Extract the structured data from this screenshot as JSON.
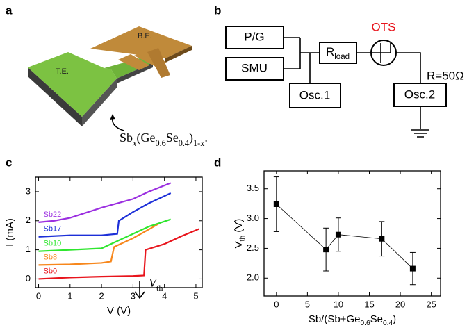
{
  "panel_a": {
    "label": "a",
    "top_electrode": "T.E.",
    "bottom_electrode": "B.E.",
    "material": [
      {
        "text": "Sb"
      },
      {
        "text": "x",
        "sub": true,
        "italic": true
      },
      {
        "text": "(Ge"
      },
      {
        "text": "0.6",
        "sub": true
      },
      {
        "text": "Se"
      },
      {
        "text": "0.4",
        "sub": true
      },
      {
        "text": ")"
      },
      {
        "text": "1-x",
        "sub": true
      },
      {
        "text": "."
      }
    ]
  },
  "panel_b": {
    "label": "b",
    "pulse_generator": "P/G",
    "smu": "SMU",
    "osc1": "Osc.1",
    "osc2": "Osc.2",
    "load": [
      {
        "text": "R"
      },
      {
        "text": "load",
        "sub": true
      }
    ],
    "device": "OTS",
    "resistance": "R=50Ω"
  },
  "chart_data": [
    {
      "panel": "c",
      "type": "line",
      "x_label": "V (V)",
      "y_label": "I (mA)",
      "xlim": [
        -0.1,
        5.2
      ],
      "ylim": [
        -0.3,
        3.5
      ],
      "xticks": [
        0,
        1,
        2,
        3,
        4,
        5
      ],
      "yticks": [
        0,
        1,
        2,
        3
      ],
      "annotation": [
        {
          "text": "V",
          "italic": true
        },
        {
          "text": "th",
          "sub": true
        }
      ],
      "series": [
        {
          "name": "Sb0",
          "color": "#e8141c",
          "x": [
            0,
            1,
            2,
            3,
            3.35,
            3.4,
            4,
            4.5,
            5.1
          ],
          "values": [
            0,
            0.05,
            0.08,
            0.1,
            0.12,
            1.0,
            1.2,
            1.45,
            1.72
          ]
        },
        {
          "name": "Sb8",
          "color": "#f7871c",
          "x": [
            0,
            1,
            2,
            2.3,
            2.4,
            3,
            3.5,
            3.9
          ],
          "values": [
            0.48,
            0.5,
            0.55,
            0.6,
            1.1,
            1.4,
            1.7,
            1.95
          ]
        },
        {
          "name": "Sb10",
          "color": "#2ee62e",
          "x": [
            0,
            1,
            2,
            2.5,
            3,
            3.5,
            4.2
          ],
          "values": [
            0.95,
            1,
            1.05,
            1.3,
            1.55,
            1.8,
            2.05
          ]
        },
        {
          "name": "Sb17",
          "color": "#1c2fd8",
          "x": [
            0,
            1,
            2,
            2.5,
            2.55,
            3,
            3.5,
            4.2
          ],
          "values": [
            1.45,
            1.5,
            1.5,
            1.55,
            2.0,
            2.3,
            2.6,
            2.95
          ]
        },
        {
          "name": "Sb22",
          "color": "#9b2fe0",
          "x": [
            0,
            0.5,
            1,
            2,
            3,
            3.5,
            4.2
          ],
          "values": [
            1.95,
            2.0,
            2.1,
            2.45,
            2.75,
            3.0,
            3.3
          ]
        }
      ]
    },
    {
      "panel": "d",
      "type": "errorbar",
      "x_label": [
        {
          "text": "Sb/(Sb+Ge"
        },
        {
          "text": "0.6",
          "sub": true
        },
        {
          "text": "Se"
        },
        {
          "text": "0.4",
          "sub": true
        },
        {
          "text": ")"
        }
      ],
      "y_label": [
        {
          "text": "V"
        },
        {
          "text": "th",
          "sub": true
        },
        {
          "text": " (V)"
        }
      ],
      "xlim": [
        -2,
        26.5
      ],
      "ylim": [
        1.7,
        3.8
      ],
      "xticks": [
        0,
        5,
        10,
        15,
        20,
        25
      ],
      "yticks": [
        {
          "value": 2,
          "label": "2.0"
        },
        {
          "value": 2.5,
          "label": "2.5"
        },
        {
          "value": 3,
          "label": "3.0"
        },
        {
          "value": 3.5,
          "label": "3.5"
        }
      ],
      "color": "#000000",
      "x": [
        0,
        8,
        10,
        17,
        22
      ],
      "values": [
        3.24,
        2.48,
        2.73,
        2.66,
        2.16
      ],
      "errors": [
        0.46,
        0.36,
        0.28,
        0.29,
        0.27
      ]
    }
  ]
}
